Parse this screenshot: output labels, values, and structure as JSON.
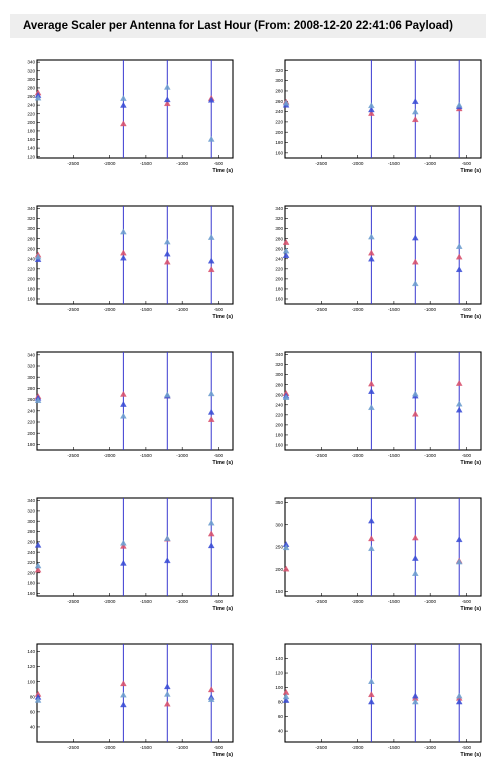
{
  "title": "Average Scaler per Antenna for Last Hour (From: 2008-12-20 22:41:06 Payload)",
  "colors": {
    "red": "#d9536f",
    "blue": "#3c4fd6",
    "cyan": "#6f9fcf",
    "vline": "#3a3ad0"
  },
  "chart_data": [
    {
      "type": "scatter",
      "xlabel": "Time (s)",
      "xlim": [
        -3000,
        -300
      ],
      "ylim": [
        117,
        345
      ],
      "xticks": [
        -2500,
        -2000,
        -1500,
        -1000,
        -500
      ],
      "yticks": [
        120,
        140,
        160,
        180,
        200,
        220,
        240,
        260,
        280,
        300,
        320,
        340
      ],
      "vlines": [
        -1810,
        -1205,
        -600
      ],
      "series": [
        {
          "color": "red",
          "x": [
            -2985,
            -1810,
            -1205,
            -600
          ],
          "y": [
            268,
            196,
            243,
            255
          ]
        },
        {
          "color": "blue",
          "x": [
            -2985,
            -1810,
            -1205,
            -600
          ],
          "y": [
            262,
            239,
            252,
            251
          ]
        },
        {
          "color": "cyan",
          "x": [
            -2985,
            -1810,
            -1205,
            -600
          ],
          "y": [
            256,
            255,
            281,
            160
          ]
        }
      ]
    },
    {
      "type": "scatter",
      "xlabel": "Time (s)",
      "xlim": [
        -3000,
        -300
      ],
      "ylim": [
        150,
        340
      ],
      "xticks": [
        -2500,
        -2000,
        -1500,
        -1000,
        -500
      ],
      "yticks": [
        160,
        180,
        200,
        220,
        240,
        260,
        280,
        300,
        320
      ],
      "vlines": [
        -1810,
        -1205,
        -600
      ],
      "series": [
        {
          "color": "red",
          "x": [
            -2985,
            -1810,
            -1205,
            -600
          ],
          "y": [
            258,
            236,
            224,
            245
          ]
        },
        {
          "color": "blue",
          "x": [
            -2985,
            -1810,
            -1205,
            -600
          ],
          "y": [
            252,
            243,
            259,
            249
          ]
        },
        {
          "color": "cyan",
          "x": [
            -2985,
            -1810,
            -1205,
            -600
          ],
          "y": [
            256,
            251,
            239,
            252
          ]
        }
      ]
    },
    {
      "type": "scatter",
      "xlabel": "Time (s)",
      "xlim": [
        -3000,
        -300
      ],
      "ylim": [
        150,
        345
      ],
      "xticks": [
        -2500,
        -2000,
        -1500,
        -1000,
        -500
      ],
      "yticks": [
        160,
        180,
        200,
        220,
        240,
        260,
        280,
        300,
        320,
        340
      ],
      "vlines": [
        -1810,
        -1205,
        -600
      ],
      "series": [
        {
          "color": "red",
          "x": [
            -2985,
            -1810,
            -1205,
            -600
          ],
          "y": [
            247,
            251,
            233,
            218
          ]
        },
        {
          "color": "blue",
          "x": [
            -2985,
            -1810,
            -1205,
            -600
          ],
          "y": [
            238,
            241,
            249,
            235
          ]
        },
        {
          "color": "cyan",
          "x": [
            -2985,
            -1810,
            -1205,
            -600
          ],
          "y": [
            243,
            293,
            273,
            282
          ]
        }
      ]
    },
    {
      "type": "scatter",
      "xlabel": "Time (s)",
      "xlim": [
        -3000,
        -300
      ],
      "ylim": [
        150,
        345
      ],
      "xticks": [
        -2500,
        -2000,
        -1500,
        -1000,
        -500
      ],
      "yticks": [
        160,
        180,
        200,
        220,
        240,
        260,
        280,
        300,
        320,
        340
      ],
      "vlines": [
        -1810,
        -1205,
        -600
      ],
      "series": [
        {
          "color": "red",
          "x": [
            -2985,
            -1810,
            -1205,
            -600
          ],
          "y": [
            272,
            251,
            233,
            243
          ]
        },
        {
          "color": "blue",
          "x": [
            -2985,
            -1810,
            -1205,
            -600
          ],
          "y": [
            246,
            239,
            281,
            218
          ]
        },
        {
          "color": "cyan",
          "x": [
            -2985,
            -1810,
            -1205,
            -600
          ],
          "y": [
            255,
            283,
            190,
            264
          ]
        }
      ]
    },
    {
      "type": "scatter",
      "xlabel": "Time (s)",
      "xlim": [
        -3000,
        -300
      ],
      "ylim": [
        170,
        345
      ],
      "xticks": [
        -2500,
        -2000,
        -1500,
        -1000,
        -500
      ],
      "yticks": [
        180,
        200,
        220,
        240,
        260,
        280,
        300,
        320,
        340
      ],
      "vlines": [
        -1810,
        -1205,
        -600
      ],
      "series": [
        {
          "color": "red",
          "x": [
            -2985,
            -1810,
            -1205,
            -600
          ],
          "y": [
            265,
            269,
            266,
            224
          ]
        },
        {
          "color": "blue",
          "x": [
            -2985,
            -1810,
            -1205,
            -600
          ],
          "y": [
            262,
            251,
            266,
            237
          ]
        },
        {
          "color": "cyan",
          "x": [
            -2985,
            -1810,
            -1205,
            -600
          ],
          "y": [
            258,
            230,
            268,
            270
          ]
        }
      ]
    },
    {
      "type": "scatter",
      "xlabel": "Time (s)",
      "xlim": [
        -3000,
        -300
      ],
      "ylim": [
        150,
        345
      ],
      "xticks": [
        -2500,
        -2000,
        -1500,
        -1000,
        -500
      ],
      "yticks": [
        160,
        180,
        200,
        220,
        240,
        260,
        280,
        300,
        320,
        340
      ],
      "vlines": [
        -1810,
        -1205,
        -600
      ],
      "series": [
        {
          "color": "red",
          "x": [
            -2985,
            -1810,
            -1205,
            -600
          ],
          "y": [
            262,
            281,
            221,
            282
          ]
        },
        {
          "color": "blue",
          "x": [
            -2985,
            -1810,
            -1205,
            -600
          ],
          "y": [
            257,
            266,
            257,
            229
          ]
        },
        {
          "color": "cyan",
          "x": [
            -2985,
            -1810,
            -1205,
            -600
          ],
          "y": [
            254,
            234,
            261,
            241
          ]
        }
      ]
    },
    {
      "type": "scatter",
      "xlabel": "Time (s)",
      "xlim": [
        -3000,
        -300
      ],
      "ylim": [
        155,
        345
      ],
      "xticks": [
        -2500,
        -2000,
        -1500,
        -1000,
        -500
      ],
      "yticks": [
        160,
        180,
        200,
        220,
        240,
        260,
        280,
        300,
        320,
        340
      ],
      "vlines": [
        -1810,
        -1205,
        -600
      ],
      "series": [
        {
          "color": "red",
          "x": [
            -2985,
            -1810,
            -1205,
            -600
          ],
          "y": [
            205,
            251,
            265,
            275
          ]
        },
        {
          "color": "blue",
          "x": [
            -2985,
            -1810,
            -1205,
            -600
          ],
          "y": [
            253,
            218,
            223,
            252
          ]
        },
        {
          "color": "cyan",
          "x": [
            -2985,
            -1810,
            -1205,
            -600
          ],
          "y": [
            213,
            257,
            266,
            296
          ]
        }
      ]
    },
    {
      "type": "scatter",
      "xlabel": "Time (s)",
      "xlim": [
        -3000,
        -300
      ],
      "ylim": [
        140,
        360
      ],
      "xticks": [
        -2500,
        -2000,
        -1500,
        -1000,
        -500
      ],
      "yticks": [
        150,
        200,
        250,
        300,
        350
      ],
      "vlines": [
        -1810,
        -1205,
        -600
      ],
      "series": [
        {
          "color": "red",
          "x": [
            -2985,
            -1810,
            -1205,
            -600
          ],
          "y": [
            200,
            268,
            270,
            218
          ]
        },
        {
          "color": "blue",
          "x": [
            -2985,
            -1810,
            -1205,
            -600
          ],
          "y": [
            255,
            308,
            224,
            266
          ]
        },
        {
          "color": "cyan",
          "x": [
            -2985,
            -1810,
            -1205,
            -600
          ],
          "y": [
            248,
            246,
            190,
            216
          ]
        }
      ]
    },
    {
      "type": "scatter",
      "xlabel": "Time (s)",
      "xlim": [
        -3000,
        -300
      ],
      "ylim": [
        20,
        150
      ],
      "xticks": [
        -2500,
        -2000,
        -1500,
        -1000,
        -500
      ],
      "yticks": [
        40,
        60,
        80,
        100,
        120,
        140
      ],
      "vlines": [
        -1810,
        -1205,
        -600
      ],
      "series": [
        {
          "color": "red",
          "x": [
            -2985,
            -1810,
            -1205,
            -600
          ],
          "y": [
            83,
            97,
            70,
            89
          ]
        },
        {
          "color": "blue",
          "x": [
            -2985,
            -1810,
            -1205,
            -600
          ],
          "y": [
            79,
            69,
            93,
            79
          ]
        },
        {
          "color": "cyan",
          "x": [
            -2985,
            -1810,
            -1205,
            -600
          ],
          "y": [
            75,
            82,
            83,
            76
          ]
        }
      ]
    },
    {
      "type": "scatter",
      "xlabel": "Time (s)",
      "xlim": [
        -3000,
        -300
      ],
      "ylim": [
        25,
        160
      ],
      "xticks": [
        -2500,
        -2000,
        -1500,
        -1000,
        -500
      ],
      "yticks": [
        40,
        60,
        80,
        100,
        120,
        140
      ],
      "vlines": [
        -1810,
        -1205,
        -600
      ],
      "series": [
        {
          "color": "red",
          "x": [
            -2985,
            -1810,
            -1205,
            -600
          ],
          "y": [
            93,
            90,
            85,
            85
          ]
        },
        {
          "color": "blue",
          "x": [
            -2985,
            -1810,
            -1205,
            -600
          ],
          "y": [
            82,
            80,
            88,
            80
          ]
        },
        {
          "color": "cyan",
          "x": [
            -2985,
            -1810,
            -1205,
            -600
          ],
          "y": [
            87,
            108,
            80,
            88
          ]
        }
      ]
    }
  ]
}
